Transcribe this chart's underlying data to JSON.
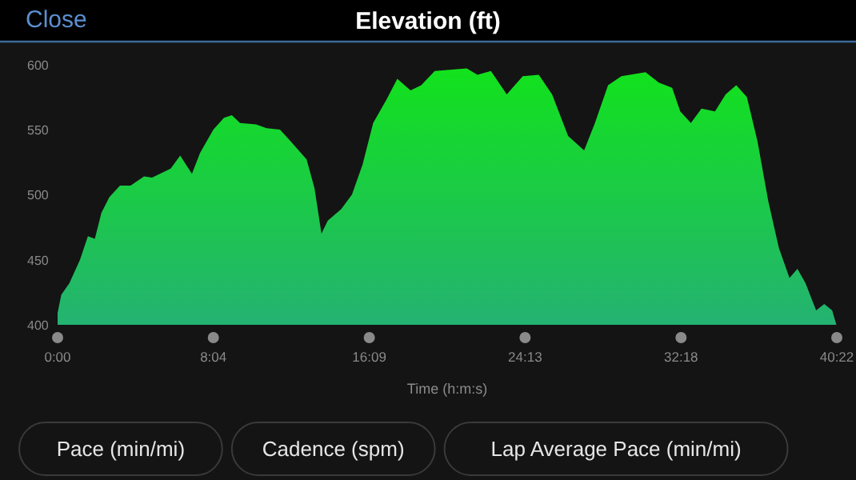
{
  "chart_data": {
    "type": "area",
    "title": "Elevation (ft)",
    "xlabel": "Time (h:m:s)",
    "annotations": [
      "Close",
      "Pace (min/mi)",
      "Cadence (spm)",
      "Lap Average Pace (min/mi)"
    ],
    "x": [
      0,
      0.19,
      0.61,
      1.16,
      1.57,
      1.93,
      2.27,
      2.68,
      3.23,
      3.78,
      4.48,
      4.89,
      5.3,
      5.86,
      6.35,
      6.96,
      7.38,
      8.07,
      8.62,
      9.03,
      9.45,
      10.28,
      10.83,
      11.52,
      12.07,
      12.9,
      13.31,
      13.67,
      14.0,
      14.7,
      15.25,
      15.8,
      16.35,
      17.04,
      17.6,
      18.29,
      18.84,
      19.54,
      21.2,
      21.75,
      22.45,
      23.27,
      24.1,
      24.93,
      25.62,
      26.45,
      27.28,
      27.84,
      28.52,
      29.21,
      30.46,
      31.15,
      31.84,
      32.26,
      32.81,
      33.36,
      34.06,
      34.61,
      35.16,
      35.71,
      36.26,
      36.82,
      37.37,
      37.92,
      38.33,
      38.75,
      39.3,
      39.72,
      40.13,
      40.35
    ],
    "series": [
      {
        "color": "#12e21c",
        "values": [
          409,
          423,
          432,
          450,
          468,
          466,
          486,
          498,
          507,
          507,
          514,
          513,
          516,
          520,
          530,
          516,
          532,
          550,
          559,
          561,
          555,
          554,
          551,
          550,
          541,
          527,
          505,
          470,
          480,
          489,
          500,
          523,
          555,
          573,
          589,
          580,
          584,
          595,
          597,
          592,
          595,
          577,
          591,
          592,
          577,
          545,
          534,
          555,
          584,
          591,
          594,
          586,
          582,
          564,
          555,
          566,
          564,
          577,
          584,
          575,
          541,
          495,
          459,
          436,
          443,
          432,
          411,
          416,
          411,
          400
        ]
      }
    ],
    "xlim": [
      0,
      40.37
    ],
    "ylim": [
      400,
      620
    ],
    "xticks": [
      {
        "value": 0,
        "label": "0:00"
      },
      {
        "value": 8.07,
        "label": "8:04"
      },
      {
        "value": 16.15,
        "label": "16:09"
      },
      {
        "value": 24.22,
        "label": "24:13"
      },
      {
        "value": 32.3,
        "label": "32:18"
      },
      {
        "value": 40.37,
        "label": "40:22"
      }
    ],
    "yticks": [
      400,
      450,
      500,
      550,
      600
    ]
  }
}
